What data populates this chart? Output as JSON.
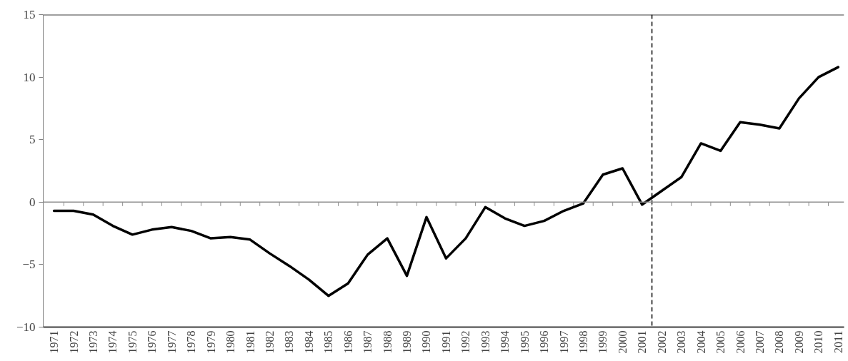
{
  "chart_data": {
    "type": "line",
    "x": [
      1971,
      1972,
      1973,
      1974,
      1975,
      1976,
      1977,
      1978,
      1979,
      1980,
      1981,
      1982,
      1983,
      1984,
      1985,
      1986,
      1987,
      1988,
      1989,
      1990,
      1991,
      1992,
      1993,
      1994,
      1995,
      1996,
      1997,
      1998,
      1999,
      2000,
      2001,
      2002,
      2003,
      2004,
      2005,
      2006,
      2007,
      2008,
      2009,
      2010,
      2011
    ],
    "series": [
      {
        "color": "#000000",
        "values": [
          -0.7,
          -0.7,
          -1.0,
          -1.9,
          -2.6,
          -2.2,
          -2.0,
          -2.3,
          -2.9,
          -2.8,
          -3.0,
          -4.1,
          -5.1,
          -6.2,
          -7.5,
          -6.5,
          -4.2,
          -2.9,
          -5.9,
          -1.2,
          -4.5,
          -2.9,
          -0.4,
          -1.3,
          -1.9,
          -1.5,
          -0.7,
          -0.1,
          2.2,
          2.7,
          -0.2,
          0.9,
          2.0,
          4.7,
          4.1,
          6.4,
          6.2,
          5.9,
          8.3,
          10.0,
          10.8
        ]
      }
    ],
    "xlim": [
      1970.45,
      2011.3
    ],
    "xticks": [
      1971,
      1972,
      1973,
      1974,
      1975,
      1976,
      1977,
      1978,
      1979,
      1980,
      1981,
      1982,
      1983,
      1984,
      1985,
      1986,
      1987,
      1988,
      1989,
      1990,
      1991,
      1992,
      1993,
      1994,
      1995,
      1996,
      1997,
      1998,
      1999,
      2000,
      2001,
      2002,
      2003,
      2004,
      2005,
      2006,
      2007,
      2008,
      2009,
      2010,
      2011
    ],
    "ylim": [
      -10,
      15
    ],
    "yticks": [
      -10,
      -5,
      0,
      5,
      10,
      15
    ],
    "ref_lines": [
      {
        "axis": "x",
        "value": 2001.5,
        "color": "#000000",
        "line_style": "dashed"
      },
      {
        "axis": "y",
        "value": 0,
        "color": "#909090",
        "line_style": "solid"
      }
    ],
    "marker": "none",
    "line_style": "solid"
  }
}
